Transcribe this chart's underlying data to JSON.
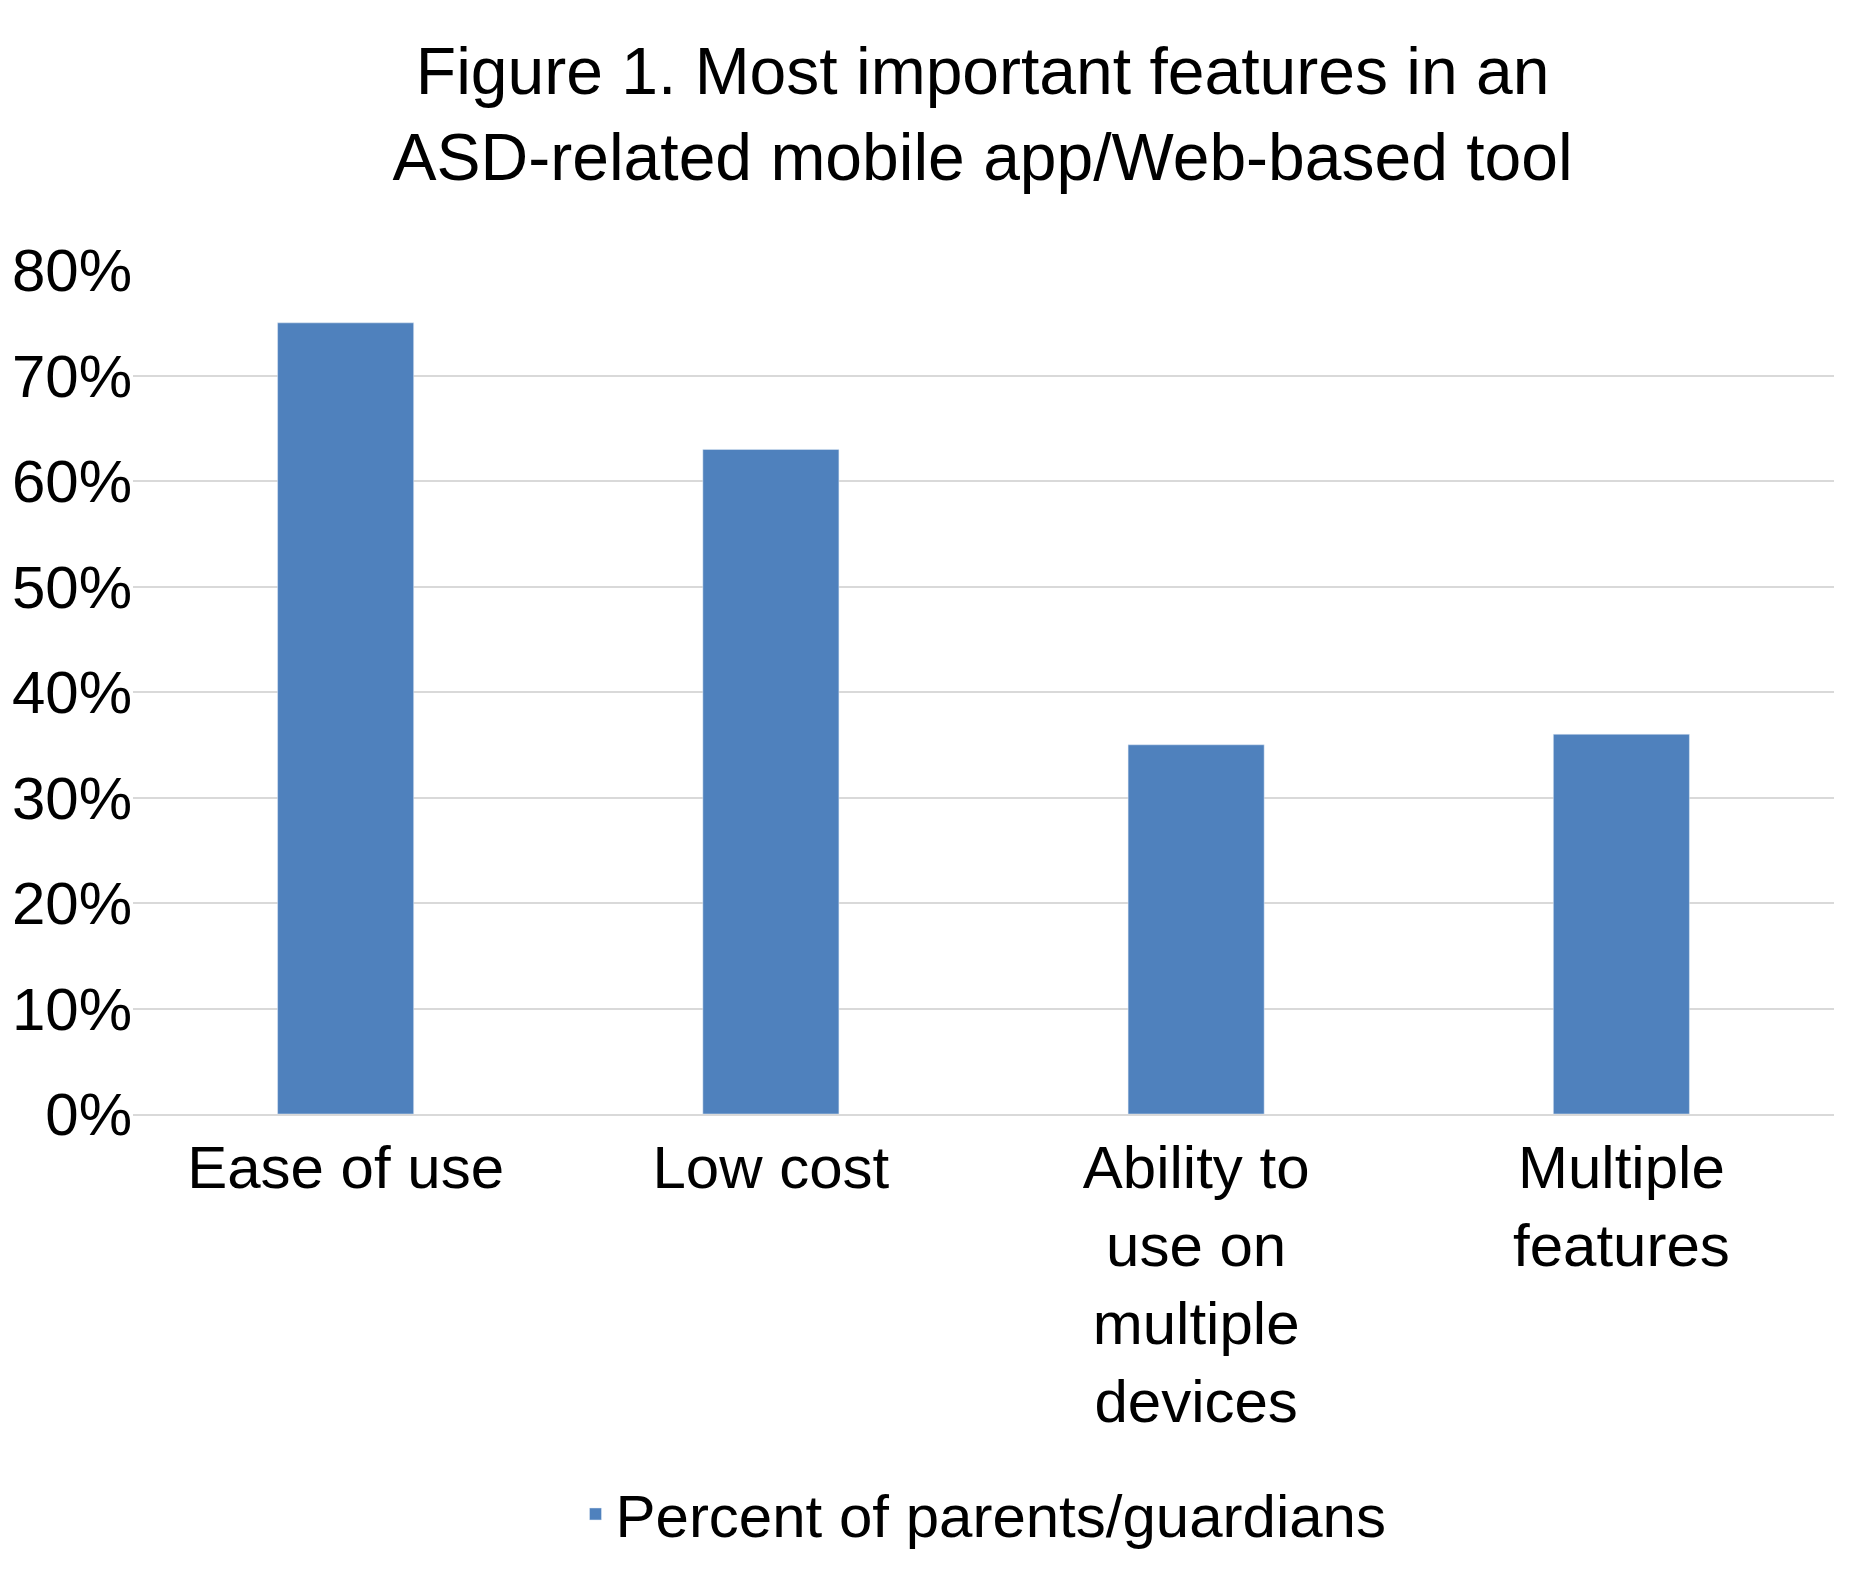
{
  "chart_data": {
    "type": "bar",
    "title": "Figure 1. Most important features in an ASD-related mobile app/Web-based tool",
    "categories": [
      "Ease of use",
      "Low cost",
      "Ability to use on multiple devices",
      "Multiple features"
    ],
    "series": [
      {
        "name": "Percent of parents/guardians",
        "color": "#4f81bd",
        "values": [
          75,
          63,
          35,
          36
        ]
      }
    ],
    "ylim": [
      0,
      80
    ],
    "yticks": [
      {
        "value": 0,
        "label": "0%"
      },
      {
        "value": 10,
        "label": "10%"
      },
      {
        "value": 20,
        "label": "20%"
      },
      {
        "value": 30,
        "label": "30%"
      },
      {
        "value": 40,
        "label": "40%"
      },
      {
        "value": 50,
        "label": "50%"
      },
      {
        "value": 60,
        "label": "60%"
      },
      {
        "value": 70,
        "label": "70%"
      },
      {
        "value": 80,
        "label": "80%"
      }
    ],
    "grid": "y",
    "legend": "bottom"
  }
}
